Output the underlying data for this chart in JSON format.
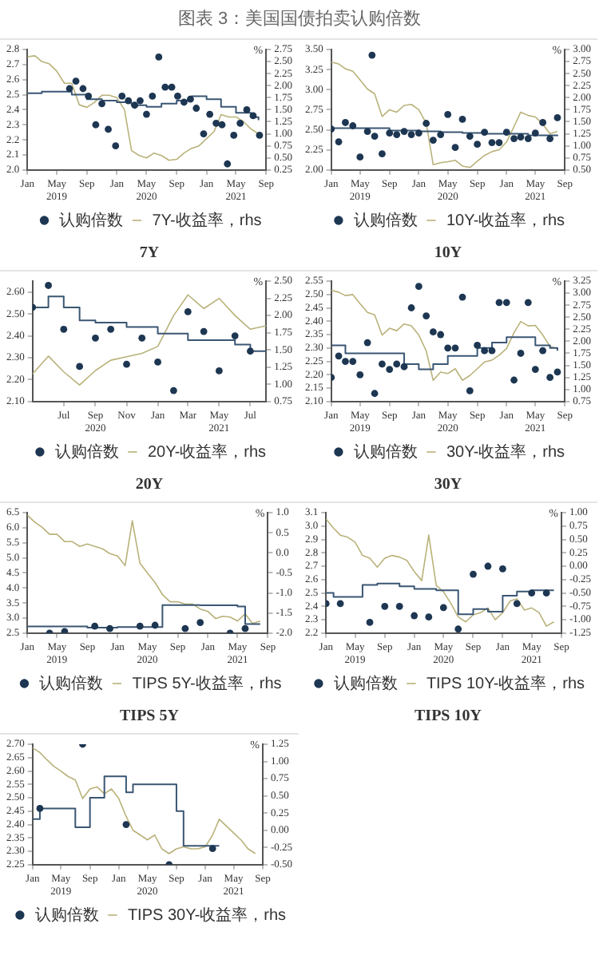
{
  "chart_data": [
    {
      "type": "other",
      "title": "图表 3：美国国债拍卖认购倍数"
    },
    {
      "type": "line",
      "title": "7Y",
      "legend": "bottom",
      "y2label": "%",
      "xlim": [
        "2019-01",
        "2021-09"
      ],
      "xticks": [
        {
          "value": "2019-01",
          "label": "Jan"
        },
        {
          "value": "2019-05",
          "label": "May\n2019"
        },
        {
          "value": "2019-09",
          "label": "Sep"
        },
        {
          "value": "2020-01",
          "label": "Jan"
        },
        {
          "value": "2020-05",
          "label": "May\n2020"
        },
        {
          "value": "2020-09",
          "label": "Sep"
        },
        {
          "value": "2021-01",
          "label": "Jan"
        },
        {
          "value": "2021-05",
          "label": "May\n2021"
        },
        {
          "value": "2021-09",
          "label": "Sep"
        }
      ],
      "ylim": [
        2.0,
        2.8
      ],
      "yticks": [
        {
          "value": 2.0,
          "label": "2.0"
        },
        2.1,
        2.2,
        2.3,
        2.4,
        2.5,
        2.6,
        2.7,
        2.8
      ],
      "y2lim": [
        0.25,
        2.75
      ],
      "y2ticks": [
        0.25,
        {
          "value": 0.5,
          "label": "0.50"
        },
        0.75,
        {
          "value": 1,
          "label": "1.00"
        },
        1.25,
        {
          "value": 1.5,
          "label": "1.50"
        },
        1.75,
        {
          "value": 2,
          "label": "2.00"
        },
        2.25,
        {
          "value": 2.5,
          "label": "2.50"
        },
        2.75
      ],
      "series": [
        {
          "type": "scatter",
          "marker": "circle",
          "name": "认购倍数",
          "color": "#1d3652",
          "x": [
            "2019-06-22",
            "2019-07-18",
            "2019-08-16",
            "2019-09-07",
            "2019-10-07",
            "2019-11-01",
            "2019-11-27",
            "2019-12-27",
            "2020-01-22",
            "2020-02-17",
            "2020-03-14",
            "2020-04-05",
            "2020-05-01",
            "2020-05-25",
            "2020-06-20",
            "2020-07-16",
            "2020-08-12",
            "2020-09-05",
            "2020-10-01",
            "2020-10-27",
            "2020-11-20",
            "2020-12-20",
            "2021-01-14",
            "2021-02-09",
            "2021-03-05",
            "2021-03-27",
            "2021-04-22",
            "2021-05-18",
            "2021-06-14",
            "2021-07-10",
            "2021-08-05"
          ],
          "values": [
            2.54,
            2.59,
            2.54,
            2.49,
            2.3,
            2.44,
            2.27,
            2.16,
            2.49,
            2.46,
            2.43,
            2.46,
            2.37,
            2.49,
            2.75,
            2.55,
            2.55,
            2.49,
            2.45,
            2.47,
            2.41,
            2.24,
            2.37,
            2.31,
            2.3,
            2.04,
            2.23,
            2.31,
            2.4,
            2.36,
            2.23
          ]
        },
        {
          "type": "step",
          "color": "#3a5673",
          "x": [
            "2019-01",
            "2019-03",
            "2019-05",
            "2019-07",
            "2019-09",
            "2019-11",
            "2020-01",
            "2020-03",
            "2020-05",
            "2020-07",
            "2020-09",
            "2020-11",
            "2021-01",
            "2021-03",
            "2021-05",
            "2021-07",
            "2021-08"
          ],
          "values": [
            2.51,
            2.52,
            2.52,
            2.5,
            2.47,
            2.46,
            2.45,
            2.43,
            2.42,
            2.44,
            2.46,
            2.49,
            2.47,
            2.42,
            2.38,
            2.35,
            2.33
          ]
        },
        {
          "type": "line",
          "axis": "y2",
          "name": "7Y-收益率，rhs",
          "color": "#b9b27a",
          "x": [
            "2019-01",
            "2019-02",
            "2019-03",
            "2019-04",
            "2019-05",
            "2019-06",
            "2019-07",
            "2019-08",
            "2019-09",
            "2019-10",
            "2019-11",
            "2019-12",
            "2020-01",
            "2020-02",
            "2020-03",
            "2020-04",
            "2020-05",
            "2020-06",
            "2020-07",
            "2020-08",
            "2020-09",
            "2020-10",
            "2020-11",
            "2020-12",
            "2021-01",
            "2021-02",
            "2021-03",
            "2021-04",
            "2021-05",
            "2021-06",
            "2021-07",
            "2021-08"
          ],
          "values": [
            2.6,
            2.62,
            2.5,
            2.45,
            2.3,
            2.05,
            2.05,
            1.6,
            1.55,
            1.65,
            1.8,
            1.8,
            1.75,
            1.5,
            0.65,
            0.55,
            0.5,
            0.6,
            0.55,
            0.45,
            0.47,
            0.6,
            0.7,
            0.75,
            0.9,
            1.05,
            1.4,
            1.35,
            1.35,
            1.25,
            1.1,
            1.0
          ]
        }
      ]
    },
    {
      "type": "line",
      "title": "10Y",
      "legend": "bottom",
      "y2label": "%",
      "xlim": [
        "2019-01",
        "2021-09"
      ],
      "xticks": [
        {
          "value": "2019-01",
          "label": "Jan"
        },
        {
          "value": "2019-05",
          "label": "May\n2019"
        },
        {
          "value": "2019-09",
          "label": "Sep"
        },
        {
          "value": "2020-01",
          "label": "Jan"
        },
        {
          "value": "2020-05",
          "label": "May\n2020"
        },
        {
          "value": "2020-09",
          "label": "Sep"
        },
        {
          "value": "2021-01",
          "label": "Jan"
        },
        {
          "value": "2021-05",
          "label": "May\n2021"
        },
        {
          "value": "2021-09",
          "label": "Sep"
        }
      ],
      "ylim": [
        2.0,
        3.5
      ],
      "yticks": [
        {
          "value": 2,
          "label": "2.00"
        },
        2.25,
        {
          "value": 2.5,
          "label": "2.50"
        },
        2.75,
        {
          "value": 3,
          "label": "3.00"
        },
        3.25,
        {
          "value": 3.5,
          "label": "3.50"
        }
      ],
      "y2lim": [
        0.5,
        3.0
      ],
      "y2ticks": [
        {
          "value": 0.5,
          "label": "0.50"
        },
        0.75,
        {
          "value": 1,
          "label": "1.00"
        },
        1.25,
        {
          "value": 1.5,
          "label": "1.50"
        },
        1.75,
        {
          "value": 2,
          "label": "2.00"
        },
        2.25,
        {
          "value": 2.5,
          "label": "2.50"
        },
        2.75,
        {
          "value": 3,
          "label": "3.00"
        }
      ],
      "series": [
        {
          "type": "scatter",
          "marker": "circle",
          "name": "认购倍数",
          "color": "#1d3652",
          "x": [
            "2019-01",
            "2019-02",
            "2019-03",
            "2019-04",
            "2019-05",
            "2019-06",
            "2019-06-20",
            "2019-07",
            "2019-08",
            "2019-09",
            "2019-10",
            "2019-11",
            "2019-12",
            "2020-01",
            "2020-02",
            "2020-03",
            "2020-04",
            "2020-05",
            "2020-06",
            "2020-07",
            "2020-08",
            "2020-09",
            "2020-10",
            "2020-11",
            "2020-12",
            "2021-01",
            "2021-02",
            "2021-03",
            "2021-04",
            "2021-05",
            "2021-06",
            "2021-07",
            "2021-08"
          ],
          "values": [
            2.51,
            2.35,
            2.59,
            2.55,
            2.16,
            2.48,
            3.43,
            2.42,
            2.2,
            2.46,
            2.44,
            2.48,
            2.44,
            2.46,
            2.58,
            2.37,
            2.44,
            2.69,
            2.28,
            2.63,
            2.42,
            2.32,
            2.47,
            2.34,
            2.34,
            2.47,
            2.39,
            2.41,
            2.39,
            2.46,
            2.59,
            2.39,
            2.65
          ]
        },
        {
          "type": "step",
          "color": "#3a5673",
          "x": [
            "2019-01",
            "2019-06",
            "2019-09",
            "2020-01",
            "2020-04",
            "2020-07",
            "2020-10",
            "2021-01",
            "2021-04",
            "2021-08"
          ],
          "values": [
            2.52,
            2.52,
            2.49,
            2.48,
            2.47,
            2.46,
            2.45,
            2.45,
            2.43,
            2.42
          ]
        },
        {
          "type": "line",
          "axis": "y2",
          "name": "10Y-收益率，rhs",
          "color": "#b9b27a",
          "x": [
            "2019-01",
            "2019-02",
            "2019-03",
            "2019-04",
            "2019-05",
            "2019-06",
            "2019-07",
            "2019-08",
            "2019-09",
            "2019-10",
            "2019-11",
            "2019-12",
            "2020-01",
            "2020-02",
            "2020-03",
            "2020-04",
            "2020-05",
            "2020-06",
            "2020-07",
            "2020-08",
            "2020-09",
            "2020-10",
            "2020-11",
            "2020-12",
            "2021-01",
            "2021-02",
            "2021-03",
            "2021-04",
            "2021-05",
            "2021-06",
            "2021-07",
            "2021-08"
          ],
          "values": [
            2.74,
            2.7,
            2.6,
            2.55,
            2.37,
            2.18,
            2.08,
            1.61,
            1.75,
            1.7,
            1.84,
            1.86,
            1.75,
            1.47,
            0.61,
            0.65,
            0.67,
            0.7,
            0.58,
            0.55,
            0.68,
            0.8,
            0.88,
            0.92,
            1.08,
            1.4,
            1.7,
            1.63,
            1.6,
            1.45,
            1.25,
            1.3
          ]
        }
      ]
    },
    {
      "type": "line",
      "title": "20Y",
      "legend": "bottom",
      "y2label": "%",
      "xlim": [
        "2020-05",
        "2021-08"
      ],
      "xticks": [
        {
          "value": "2020-07",
          "label": "Jul"
        },
        {
          "value": "2020-09",
          "label": "Sep\n2020"
        },
        {
          "value": "2020-11",
          "label": "Nov"
        },
        {
          "value": "2021-01",
          "label": "Jan"
        },
        {
          "value": "2021-03",
          "label": "Mar"
        },
        {
          "value": "2021-05",
          "label": "May\n2021"
        },
        {
          "value": "2021-07",
          "label": "Jul"
        }
      ],
      "ylim": [
        2.1,
        2.65
      ],
      "yticks": [
        {
          "value": 2.1,
          "label": "2.10"
        },
        {
          "value": 2.2,
          "label": "2.20"
        },
        {
          "value": 2.3,
          "label": "2.30"
        },
        {
          "value": 2.4,
          "label": "2.40"
        },
        {
          "value": 2.5,
          "label": "2.50"
        },
        {
          "value": 2.6,
          "label": "2.60"
        }
      ],
      "y2lim": [
        0.75,
        2.5
      ],
      "y2ticks": [
        0.75,
        {
          "value": 1,
          "label": "1.00"
        },
        1.25,
        {
          "value": 1.5,
          "label": "1.50"
        },
        1.75,
        {
          "value": 2,
          "label": "2.00"
        },
        2.25,
        {
          "value": 2.5,
          "label": "2.50"
        }
      ],
      "series": [
        {
          "type": "scatter",
          "marker": "circle",
          "name": "认购倍数",
          "color": "#1d3652",
          "x": [
            "2020-05",
            "2020-06",
            "2020-07",
            "2020-08",
            "2020-09",
            "2020-10",
            "2020-11",
            "2020-12",
            "2021-01",
            "2021-02",
            "2021-03",
            "2021-04",
            "2021-05",
            "2021-06",
            "2021-07"
          ],
          "values": [
            2.53,
            2.63,
            2.43,
            2.26,
            2.39,
            2.43,
            2.27,
            2.39,
            2.28,
            2.15,
            2.51,
            2.42,
            2.24,
            2.4,
            2.33
          ]
        },
        {
          "type": "step",
          "color": "#3a5673",
          "x": [
            "2020-05",
            "2020-06",
            "2020-07",
            "2020-08",
            "2020-09",
            "2020-11",
            "2021-01",
            "2021-03",
            "2021-05",
            "2021-06",
            "2021-07",
            "2021-08"
          ],
          "values": [
            2.53,
            2.58,
            2.53,
            2.47,
            2.46,
            2.44,
            2.41,
            2.38,
            2.38,
            2.36,
            2.33,
            2.33
          ]
        },
        {
          "type": "line",
          "axis": "y2",
          "name": "20Y-收益率，rhs",
          "color": "#b9b27a",
          "x": [
            "2020-05",
            "2020-06",
            "2020-07",
            "2020-08",
            "2020-09",
            "2020-10",
            "2020-11",
            "2020-12",
            "2021-01",
            "2021-02",
            "2021-03",
            "2021-04",
            "2021-05",
            "2021-06",
            "2021-07",
            "2021-08"
          ],
          "values": [
            1.15,
            1.41,
            1.18,
            0.99,
            1.2,
            1.35,
            1.4,
            1.45,
            1.55,
            2.0,
            2.3,
            2.1,
            2.25,
            2.0,
            1.8,
            1.85
          ]
        }
      ]
    },
    {
      "type": "line",
      "title": "30Y",
      "legend": "bottom",
      "y2label": "%",
      "xlim": [
        "2019-01",
        "2021-09"
      ],
      "xticks": [
        {
          "value": "2019-01",
          "label": "Jan"
        },
        {
          "value": "2019-05",
          "label": "May\n2019"
        },
        {
          "value": "2019-09",
          "label": "Sep"
        },
        {
          "value": "2020-01",
          "label": "Jan"
        },
        {
          "value": "2020-05",
          "label": "May\n2020"
        },
        {
          "value": "2020-09",
          "label": "Sep"
        },
        {
          "value": "2021-01",
          "label": "Jan"
        },
        {
          "value": "2021-05",
          "label": "May\n2021"
        },
        {
          "value": "2021-09",
          "label": "Sep"
        }
      ],
      "ylim": [
        2.1,
        2.55
      ],
      "yticks": [
        {
          "value": 2.1,
          "label": "2.10"
        },
        2.15,
        {
          "value": 2.2,
          "label": "2.20"
        },
        2.25,
        {
          "value": 2.3,
          "label": "2.30"
        },
        2.35,
        {
          "value": 2.4,
          "label": "2.40"
        },
        2.45,
        {
          "value": 2.5,
          "label": "2.50"
        },
        2.55
      ],
      "y2lim": [
        0.75,
        3.25
      ],
      "y2ticks": [
        0.75,
        {
          "value": 1,
          "label": "1.00"
        },
        1.25,
        {
          "value": 1.5,
          "label": "1.50"
        },
        1.75,
        {
          "value": 2,
          "label": "2.00"
        },
        2.25,
        {
          "value": 2.5,
          "label": "2.50"
        },
        2.75,
        {
          "value": 3,
          "label": "3.00"
        },
        3.25
      ],
      "series": [
        {
          "type": "scatter",
          "marker": "circle",
          "name": "认购倍数",
          "color": "#1d3652",
          "x": [
            "2019-01",
            "2019-02",
            "2019-03",
            "2019-04",
            "2019-05",
            "2019-06",
            "2019-07",
            "2019-08",
            "2019-09",
            "2019-10",
            "2019-11",
            "2019-12",
            "2020-01",
            "2020-02",
            "2020-03",
            "2020-04",
            "2020-05",
            "2020-06",
            "2020-07",
            "2020-08",
            "2020-09",
            "2020-10",
            "2020-11",
            "2020-12",
            "2021-01",
            "2021-02",
            "2021-03",
            "2021-04",
            "2021-05",
            "2021-06",
            "2021-07",
            "2021-08"
          ],
          "values": [
            2.19,
            2.27,
            2.25,
            2.25,
            2.2,
            2.32,
            2.13,
            2.24,
            2.22,
            2.24,
            2.23,
            2.45,
            2.53,
            2.42,
            2.36,
            2.35,
            2.3,
            2.3,
            2.49,
            2.14,
            2.31,
            2.29,
            2.29,
            2.47,
            2.47,
            2.18,
            2.28,
            2.47,
            2.22,
            2.29,
            2.19,
            2.21
          ]
        },
        {
          "type": "step",
          "color": "#3a5673",
          "x": [
            "2019-01",
            "2019-03",
            "2019-09",
            "2019-11",
            "2020-01",
            "2020-03",
            "2020-05",
            "2020-09",
            "2020-11",
            "2021-01",
            "2021-05",
            "2021-07",
            "2021-08"
          ],
          "values": [
            2.31,
            2.28,
            2.28,
            2.24,
            2.22,
            2.24,
            2.27,
            2.3,
            2.32,
            2.34,
            2.31,
            2.3,
            2.29
          ]
        },
        {
          "type": "line",
          "axis": "y2",
          "name": "30Y-收益率，rhs",
          "color": "#b9b27a",
          "x": [
            "2019-01",
            "2019-02",
            "2019-03",
            "2019-04",
            "2019-05",
            "2019-06",
            "2019-07",
            "2019-08",
            "2019-09",
            "2019-10",
            "2019-11",
            "2019-12",
            "2020-01",
            "2020-02",
            "2020-03",
            "2020-04",
            "2020-05",
            "2020-06",
            "2020-07",
            "2020-08",
            "2020-09",
            "2020-10",
            "2020-11",
            "2020-12",
            "2021-01",
            "2021-02",
            "2021-03",
            "2021-04",
            "2021-05",
            "2021-06",
            "2021-07",
            "2021-08"
          ],
          "values": [
            3.06,
            3.02,
            2.95,
            2.97,
            2.78,
            2.6,
            2.55,
            2.13,
            2.27,
            2.22,
            2.36,
            2.32,
            2.13,
            1.8,
            1.19,
            1.36,
            1.33,
            1.43,
            1.19,
            1.29,
            1.43,
            1.57,
            1.61,
            1.71,
            1.85,
            2.18,
            2.41,
            2.32,
            2.33,
            2.13,
            1.89,
            1.85
          ]
        }
      ]
    },
    {
      "type": "line",
      "title": "TIPS 5Y",
      "legend": "bottom",
      "y2label": "%",
      "xlim": [
        "2019-01",
        "2021-09"
      ],
      "xticks": [
        {
          "value": "2019-01",
          "label": "Jan"
        },
        {
          "value": "2019-05",
          "label": "May\n2019"
        },
        {
          "value": "2019-09",
          "label": "Sep"
        },
        {
          "value": "2020-01",
          "label": "Jan"
        },
        {
          "value": "2020-05",
          "label": "May\n2020"
        },
        {
          "value": "2020-09",
          "label": "Sep"
        },
        {
          "value": "2021-01",
          "label": "Jan"
        },
        {
          "value": "2021-05",
          "label": "May\n2021"
        },
        {
          "value": "2021-09",
          "label": "Sep"
        }
      ],
      "ylim": [
        2.5,
        6.5
      ],
      "yticks": [
        2.5,
        {
          "value": 3,
          "label": "3.0"
        },
        3.5,
        {
          "value": 4,
          "label": "4.0"
        },
        4.5,
        {
          "value": 5,
          "label": "5.0"
        },
        5.5,
        {
          "value": 6,
          "label": "6.0"
        },
        6.5
      ],
      "y2lim": [
        -2.0,
        1.0
      ],
      "y2ticks": [
        {
          "value": -2,
          "label": "-2.0"
        },
        -1.5,
        {
          "value": -1,
          "label": "-1.0"
        },
        -0.5,
        {
          "value": 0,
          "label": "0.0"
        },
        0.5,
        {
          "value": 1,
          "label": "1.0"
        }
      ],
      "series": [
        {
          "type": "scatter",
          "marker": "circle",
          "name": "认购倍数",
          "color": "#1d3652",
          "x": [
            "2019-04",
            "2019-06",
            "2019-10",
            "2019-12",
            "2020-04",
            "2020-06",
            "2020-10",
            "2020-12",
            "2021-04",
            "2021-06"
          ],
          "values": [
            2.5,
            2.55,
            2.73,
            2.65,
            2.73,
            2.76,
            2.65,
            2.85,
            2.5,
            2.65
          ]
        },
        {
          "type": "step",
          "color": "#3a5673",
          "x": [
            "2019-01",
            "2019-09",
            "2020-01",
            "2020-07",
            "2020-12",
            "2021-05",
            "2021-06",
            "2021-08"
          ],
          "values": [
            2.72,
            2.68,
            2.7,
            3.43,
            3.42,
            3.38,
            2.8,
            2.8
          ]
        },
        {
          "type": "line",
          "axis": "y2",
          "name": "TIPS 5Y-收益率，rhs",
          "color": "#b9b27a",
          "x": [
            "2019-01",
            "2019-02",
            "2019-03",
            "2019-04",
            "2019-05",
            "2019-06",
            "2019-07",
            "2019-08",
            "2019-09",
            "2019-10",
            "2019-11",
            "2019-12",
            "2020-01",
            "2020-02",
            "2020-03",
            "2020-04",
            "2020-05",
            "2020-06",
            "2020-07",
            "2020-08",
            "2020-09",
            "2020-10",
            "2020-11",
            "2020-12",
            "2021-01",
            "2021-02",
            "2021-03",
            "2021-04",
            "2021-05",
            "2021-06",
            "2021-07",
            "2021-08"
          ],
          "values": [
            0.94,
            0.76,
            0.64,
            0.46,
            0.46,
            0.28,
            0.28,
            0.16,
            0.22,
            0.16,
            0.1,
            -0.02,
            -0.08,
            -0.32,
            0.8,
            -0.26,
            -0.5,
            -0.74,
            -1.04,
            -1.22,
            -1.22,
            -1.28,
            -1.28,
            -1.4,
            -1.46,
            -1.64,
            -1.58,
            -1.6,
            -1.7,
            -1.52,
            -1.76,
            -1.7
          ]
        }
      ]
    },
    {
      "type": "line",
      "title": "TIPS 10Y",
      "legend": "bottom",
      "y2label": "%",
      "xlim": [
        "2019-01",
        "2021-09"
      ],
      "xticks": [
        {
          "value": "2019-01",
          "label": "Jan"
        },
        {
          "value": "2019-05",
          "label": "May\n2019"
        },
        {
          "value": "2019-09",
          "label": "Sep"
        },
        {
          "value": "2020-01",
          "label": "Jan"
        },
        {
          "value": "2020-05",
          "label": "May\n2020"
        },
        {
          "value": "2020-09",
          "label": "Sep"
        },
        {
          "value": "2021-01",
          "label": "Jan"
        },
        {
          "value": "2021-05",
          "label": "May\n2021"
        },
        {
          "value": "2021-09",
          "label": "Sep"
        }
      ],
      "ylim": [
        2.2,
        3.1
      ],
      "yticks": [
        2.2,
        2.3,
        2.4,
        2.5,
        2.6,
        2.7,
        2.8,
        2.9,
        {
          "value": 3,
          "label": "3.0"
        },
        3.1
      ],
      "y2lim": [
        -1.25,
        1.0
      ],
      "y2ticks": [
        -1.25,
        {
          "value": -1,
          "label": "-1.00"
        },
        -0.75,
        {
          "value": -0.5,
          "label": "-0.50"
        },
        -0.25,
        {
          "value": 0,
          "label": "0.00"
        },
        0.25,
        {
          "value": 0.5,
          "label": "0.50"
        },
        0.75,
        {
          "value": 1,
          "label": "1.00"
        }
      ],
      "series": [
        {
          "type": "scatter",
          "marker": "circle",
          "name": "认购倍数",
          "color": "#1d3652",
          "x": [
            "2019-01",
            "2019-03",
            "2019-07",
            "2019-09",
            "2019-11",
            "2020-01",
            "2020-03",
            "2020-05",
            "2020-07",
            "2020-09",
            "2020-11",
            "2021-01",
            "2021-03",
            "2021-05",
            "2021-07"
          ],
          "values": [
            2.42,
            2.42,
            2.28,
            2.4,
            2.4,
            2.33,
            2.32,
            2.39,
            2.23,
            2.64,
            2.7,
            2.68,
            2.42,
            2.5,
            2.5
          ]
        },
        {
          "type": "step",
          "color": "#3a5673",
          "x": [
            "2019-01",
            "2019-02",
            "2019-06",
            "2019-08",
            "2019-11",
            "2020-01",
            "2020-04",
            "2020-07",
            "2020-09",
            "2020-11",
            "2021-01",
            "2021-03",
            "2021-05",
            "2021-08"
          ],
          "values": [
            2.5,
            2.47,
            2.56,
            2.57,
            2.55,
            2.53,
            2.52,
            2.34,
            2.38,
            2.36,
            2.48,
            2.51,
            2.52,
            2.52
          ]
        },
        {
          "type": "line",
          "axis": "y2",
          "name": "TIPS 10Y-收益率，rhs",
          "color": "#b9b27a",
          "x": [
            "2019-01",
            "2019-02",
            "2019-03",
            "2019-04",
            "2019-05",
            "2019-06",
            "2019-07",
            "2019-08",
            "2019-09",
            "2019-10",
            "2019-11",
            "2019-12",
            "2020-01",
            "2020-02",
            "2020-03",
            "2020-04",
            "2020-05",
            "2020-06",
            "2020-07",
            "2020-08",
            "2020-09",
            "2020-10",
            "2020-11",
            "2020-12",
            "2021-01",
            "2021-02",
            "2021-03",
            "2021-04",
            "2021-05",
            "2021-06",
            "2021-07",
            "2021-08"
          ],
          "values": [
            0.88,
            0.71,
            0.58,
            0.54,
            0.45,
            0.2,
            0.15,
            -0.02,
            0.15,
            0.2,
            0.17,
            0.11,
            -0.1,
            -0.27,
            0.58,
            -0.36,
            -0.48,
            -0.7,
            -0.95,
            -1.04,
            -0.91,
            -0.87,
            -0.78,
            -1.0,
            -0.87,
            -0.65,
            -0.61,
            -0.82,
            -0.78,
            -0.87,
            -1.12,
            -1.04
          ]
        }
      ]
    },
    {
      "type": "line",
      "legend": "bottom",
      "y2label": "%",
      "xlim": [
        "2019-01",
        "2021-09"
      ],
      "xticks": [
        {
          "value": "2019-01",
          "label": "Jan"
        },
        {
          "value": "2019-05",
          "label": "May\n2019"
        },
        {
          "value": "2019-09",
          "label": "Sep"
        },
        {
          "value": "2020-01",
          "label": "Jan"
        },
        {
          "value": "2020-05",
          "label": "May\n2020"
        },
        {
          "value": "2020-09",
          "label": "Sep"
        },
        {
          "value": "2021-01",
          "label": "Jan"
        },
        {
          "value": "2021-05",
          "label": "May\n2021"
        },
        {
          "value": "2021-09",
          "label": "Sep"
        }
      ],
      "ylim": [
        2.25,
        2.7
      ],
      "yticks": [
        2.25,
        {
          "value": 2.3,
          "label": "2.30"
        },
        2.35,
        {
          "value": 2.4,
          "label": "2.40"
        },
        2.45,
        {
          "value": 2.5,
          "label": "2.50"
        },
        2.55,
        {
          "value": 2.6,
          "label": "2.60"
        },
        2.65,
        {
          "value": 2.7,
          "label": "2.70"
        }
      ],
      "y2lim": [
        -0.5,
        1.25
      ],
      "y2ticks": [
        {
          "value": -0.5,
          "label": "-0.50"
        },
        -0.25,
        {
          "value": 0,
          "label": "0.00"
        },
        0.25,
        {
          "value": 0.5,
          "label": "0.50"
        },
        0.75,
        {
          "value": 1,
          "label": "1.00"
        },
        1.25
      ],
      "series": [
        {
          "type": "scatter",
          "marker": "circle",
          "name": "认购倍数",
          "color": "#1d3652",
          "x": [
            "2019-02",
            "2019-08",
            "2020-02",
            "2020-08",
            "2021-02"
          ],
          "values": [
            2.46,
            2.7,
            2.4,
            2.25,
            2.31
          ]
        },
        {
          "type": "step",
          "color": "#3a5673",
          "x": [
            "2019-01",
            "2019-02",
            "2019-07",
            "2019-09",
            "2019-11",
            "2020-02",
            "2020-03",
            "2020-09",
            "2020-10",
            "2021-03"
          ],
          "values": [
            2.42,
            2.46,
            2.39,
            2.5,
            2.58,
            2.52,
            2.55,
            2.45,
            2.32,
            2.32
          ]
        },
        {
          "type": "line",
          "axis": "y2",
          "name": "TIPS 30Y-收益率，rhs",
          "color": "#b9b27a",
          "x": [
            "2019-01",
            "2019-02",
            "2019-03",
            "2019-04",
            "2019-05",
            "2019-06",
            "2019-07",
            "2019-08",
            "2019-09",
            "2019-10",
            "2019-11",
            "2019-12",
            "2020-01",
            "2020-02",
            "2020-03",
            "2020-04",
            "2020-05",
            "2020-06",
            "2020-07",
            "2020-08",
            "2020-09",
            "2020-10",
            "2020-11",
            "2020-12",
            "2021-01",
            "2021-02",
            "2021-03",
            "2021-04",
            "2021-05",
            "2021-06",
            "2021-07",
            "2021-08"
          ],
          "values": [
            1.2,
            1.13,
            1.03,
            0.93,
            0.86,
            0.78,
            0.73,
            0.46,
            0.6,
            0.63,
            0.53,
            0.6,
            0.46,
            0.2,
            0.0,
            -0.07,
            -0.14,
            -0.07,
            -0.27,
            -0.34,
            -0.27,
            -0.24,
            -0.27,
            -0.27,
            -0.24,
            -0.07,
            0.16,
            0.06,
            -0.04,
            -0.14,
            -0.27,
            -0.34
          ]
        }
      ]
    }
  ]
}
